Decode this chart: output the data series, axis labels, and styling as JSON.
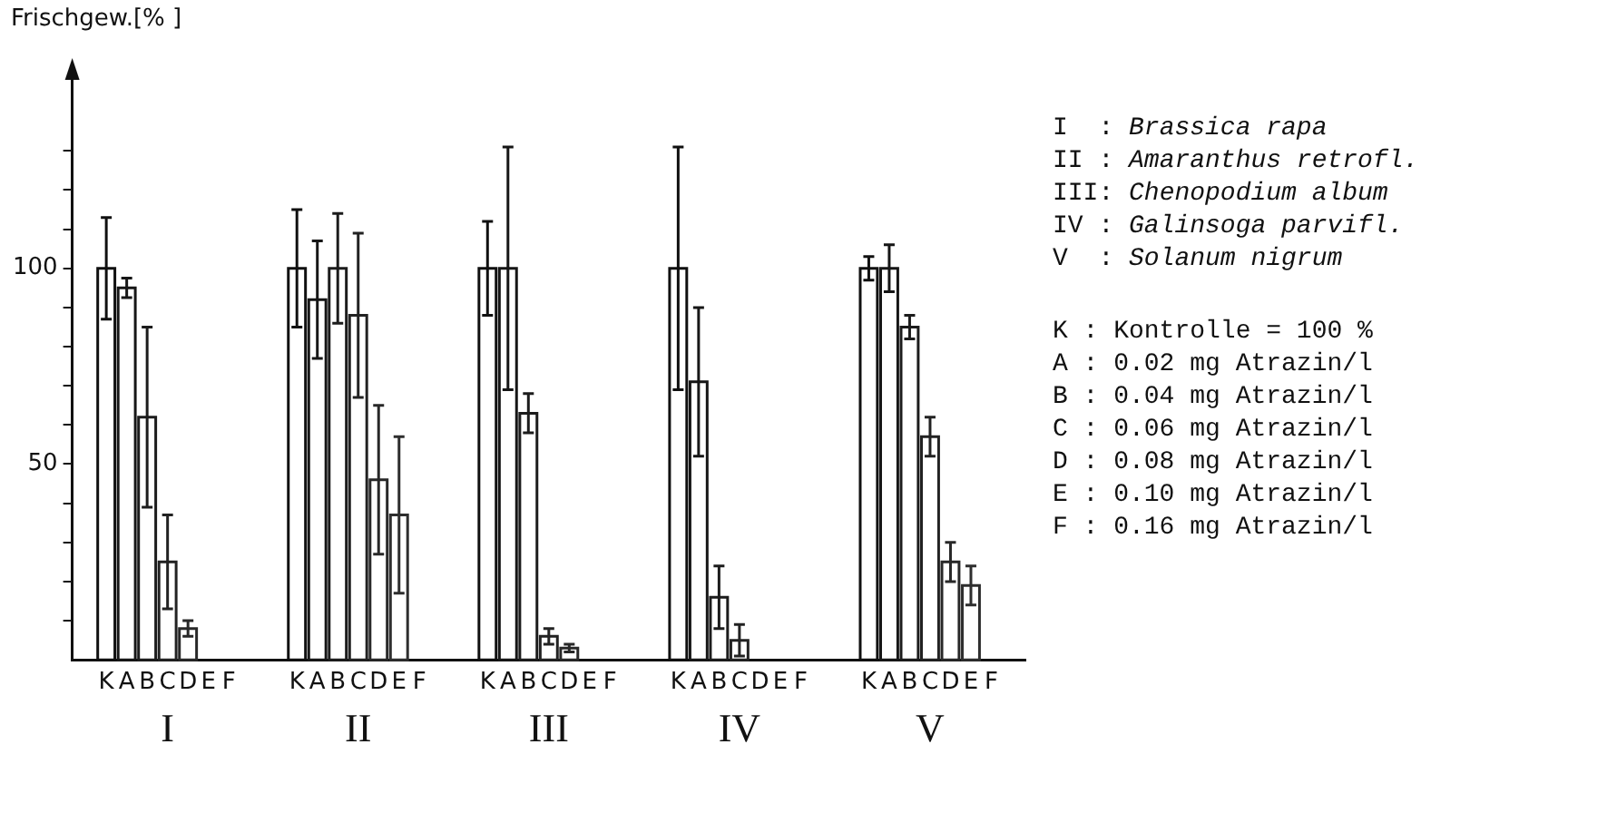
{
  "chart_data": {
    "type": "bar",
    "ylabel": "Frischgew.[% ]",
    "categories": [
      "I",
      "II",
      "III",
      "IV",
      "V"
    ],
    "series": [
      {
        "name": "K",
        "color": "#101010",
        "values": [
          100,
          100,
          100,
          100,
          100
        ],
        "errors": [
          13,
          15,
          12,
          31,
          3
        ]
      },
      {
        "name": "A",
        "color": "#161616",
        "values": [
          95,
          92,
          100,
          71,
          100
        ],
        "errors": [
          2.5,
          15,
          31,
          19,
          6
        ]
      },
      {
        "name": "B",
        "color": "#1c1c1c",
        "values": [
          62,
          100,
          63,
          16,
          85
        ],
        "errors": [
          23,
          14,
          5,
          8,
          3
        ]
      },
      {
        "name": "C",
        "color": "#222222",
        "values": [
          25,
          88,
          6,
          5,
          57
        ],
        "errors": [
          12,
          21,
          2,
          4,
          5
        ]
      },
      {
        "name": "D",
        "color": "#282828",
        "values": [
          8,
          46,
          3,
          null,
          25
        ],
        "errors": [
          2,
          19,
          1,
          null,
          5
        ]
      },
      {
        "name": "E",
        "color": "#2e2e2e",
        "values": [
          null,
          37,
          null,
          null,
          19
        ],
        "errors": [
          null,
          20,
          null,
          null,
          5
        ]
      },
      {
        "name": "F",
        "values": [
          null,
          null,
          null,
          null,
          null
        ]
      }
    ],
    "ylim": [
      0,
      150
    ],
    "yticks": [
      {
        "value": 10,
        "label": null
      },
      {
        "value": 20,
        "label": null
      },
      {
        "value": 30,
        "label": null
      },
      {
        "value": 40,
        "label": null
      },
      50,
      {
        "value": 60,
        "label": null
      },
      {
        "value": 70,
        "label": null
      },
      {
        "value": 80,
        "label": null
      },
      {
        "value": 90,
        "label": null
      },
      100,
      {
        "value": 110,
        "label": null
      },
      {
        "value": 120,
        "label": null
      },
      {
        "value": 130,
        "label": null
      }
    ],
    "grid": false,
    "legend": "bottom",
    "annotations": [
      "I  : Brassica rapa",
      "II : Amaranthus retrofl.",
      "III: Chenopodium album",
      "IV : Galinsoga parvifl.",
      "V  : Solanum nigrum",
      "K : Kontrolle = 100 %",
      "A : 0.02 mg Atrazin/l",
      "B : 0.04 mg Atrazin/l",
      "C : 0.06 mg Atrazin/l",
      "D : 0.08 mg Atrazin/l",
      "E : 0.10 mg Atrazin/l",
      "F : 0.16 mg Atrazin/l"
    ]
  }
}
